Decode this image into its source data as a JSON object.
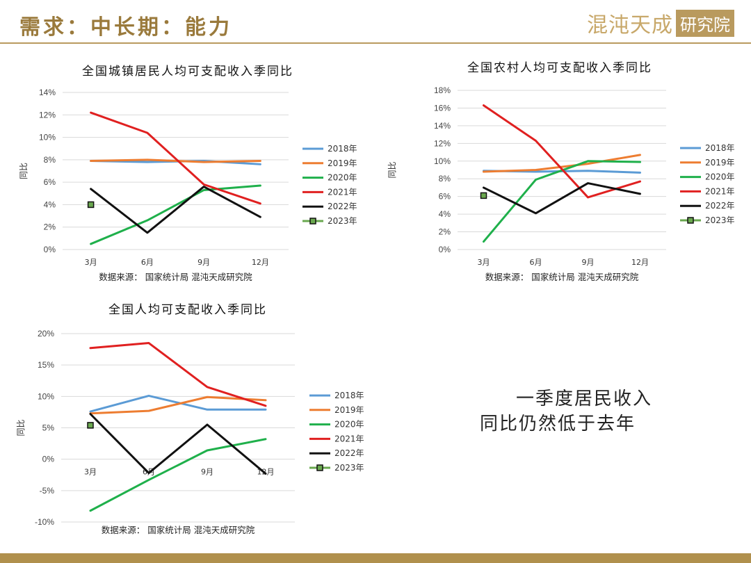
{
  "header": {
    "title": "需求：中长期：能力",
    "brand_main": "混沌天成",
    "brand_box": "研究院"
  },
  "conclusion": {
    "line1": "一季度居民收入",
    "line2": "同比仍然低于去年"
  },
  "colors": {
    "2018年": "#5b9bd5",
    "2019年": "#ed7d31",
    "2020年": "#1fb04b",
    "2021年": "#e02020",
    "2022年": "#111111",
    "2023年": "#6aa84f"
  },
  "chart_data": [
    {
      "type": "line",
      "title": "全国城镇居民人均可支配收入季同比",
      "ylabel": "同比",
      "source": "数据来源： 国家统计局 混沌天成研究院",
      "categories": [
        "3月",
        "6月",
        "9月",
        "12月"
      ],
      "ylim": [
        0,
        14
      ],
      "ystep": 2,
      "yticks": [
        "0%",
        "2%",
        "4%",
        "6%",
        "8%",
        "10%",
        "12%",
        "14%"
      ],
      "legend_position": "right",
      "series": [
        {
          "name": "2018年",
          "values": [
            7.9,
            7.8,
            7.9,
            7.6
          ]
        },
        {
          "name": "2019年",
          "values": [
            7.9,
            8.0,
            7.8,
            7.9
          ]
        },
        {
          "name": "2020年",
          "values": [
            0.5,
            2.6,
            5.3,
            5.7
          ]
        },
        {
          "name": "2021年",
          "values": [
            12.2,
            10.4,
            5.8,
            4.1
          ]
        },
        {
          "name": "2022年",
          "values": [
            5.4,
            1.5,
            5.6,
            2.9
          ]
        },
        {
          "name": "2023年",
          "values": [
            4.0,
            null,
            null,
            null
          ],
          "marker": true
        }
      ]
    },
    {
      "type": "line",
      "title": "全国农村人均可支配收入季同比",
      "ylabel": "同比",
      "source": "数据来源： 国家统计局 混沌天成研究院",
      "categories": [
        "3月",
        "6月",
        "9月",
        "12月"
      ],
      "ylim": [
        0,
        18
      ],
      "ystep": 2,
      "yticks": [
        "0%",
        "2%",
        "4%",
        "6%",
        "8%",
        "10%",
        "12%",
        "14%",
        "16%",
        "18%"
      ],
      "legend_position": "right",
      "series": [
        {
          "name": "2018年",
          "values": [
            8.9,
            8.8,
            8.9,
            8.7
          ]
        },
        {
          "name": "2019年",
          "values": [
            8.8,
            9.0,
            9.7,
            10.7
          ]
        },
        {
          "name": "2020年",
          "values": [
            0.9,
            7.9,
            10.0,
            9.9
          ]
        },
        {
          "name": "2021年",
          "values": [
            16.3,
            12.3,
            5.9,
            7.7
          ]
        },
        {
          "name": "2022年",
          "values": [
            7.0,
            4.1,
            7.5,
            6.3
          ]
        },
        {
          "name": "2023年",
          "values": [
            6.1,
            null,
            null,
            null
          ],
          "marker": true
        }
      ]
    },
    {
      "type": "line",
      "title": "全国人均可支配收入季同比",
      "ylabel": "同比",
      "source": "数据来源： 国家统计局 混沌天成研究院",
      "categories": [
        "3月",
        "6月",
        "9月",
        "12月"
      ],
      "ylim": [
        -10,
        20
      ],
      "ystep": 5,
      "yticks": [
        "-10%",
        "-5%",
        "0%",
        "5%",
        "10%",
        "15%",
        "20%"
      ],
      "legend_position": "right",
      "series": [
        {
          "name": "2018年",
          "values": [
            7.6,
            10.1,
            7.9,
            7.9
          ]
        },
        {
          "name": "2019年",
          "values": [
            7.3,
            7.7,
            9.9,
            9.4
          ]
        },
        {
          "name": "2020年",
          "values": [
            -8.2,
            -3.3,
            1.4,
            3.2
          ]
        },
        {
          "name": "2021年",
          "values": [
            17.7,
            18.5,
            11.5,
            8.5
          ]
        },
        {
          "name": "2022年",
          "values": [
            7.2,
            -2.2,
            5.5,
            -2.3
          ]
        },
        {
          "name": "2023年",
          "values": [
            5.4,
            null,
            null,
            null
          ],
          "marker": true
        }
      ]
    }
  ]
}
